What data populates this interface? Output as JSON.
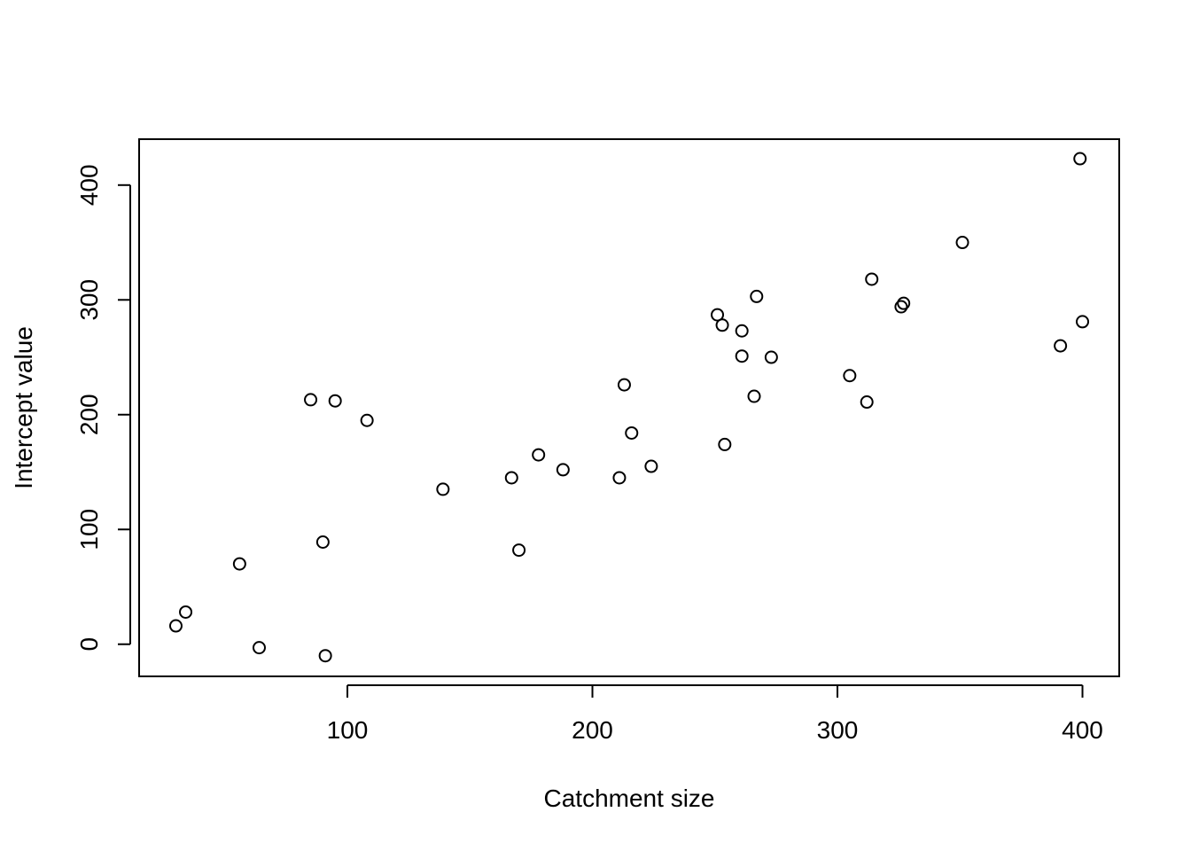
{
  "chart_data": {
    "type": "scatter",
    "title": "",
    "xlabel": "Catchment size",
    "ylabel": "Intercept value",
    "xlim": [
      15,
      415
    ],
    "ylim": [
      -28,
      440
    ],
    "xticks": [
      100,
      200,
      300,
      400
    ],
    "yticks": [
      0,
      100,
      200,
      300,
      400
    ],
    "grid": false,
    "marker": "open-circle",
    "colors": {
      "marker": "#000000",
      "axis": "#000000",
      "background": "#ffffff"
    },
    "points": [
      {
        "x": 30,
        "y": 16
      },
      {
        "x": 34,
        "y": 28
      },
      {
        "x": 56,
        "y": 70
      },
      {
        "x": 64,
        "y": -3
      },
      {
        "x": 85,
        "y": 213
      },
      {
        "x": 90,
        "y": 89
      },
      {
        "x": 91,
        "y": -10
      },
      {
        "x": 95,
        "y": 212
      },
      {
        "x": 108,
        "y": 195
      },
      {
        "x": 139,
        "y": 135
      },
      {
        "x": 167,
        "y": 145
      },
      {
        "x": 170,
        "y": 82
      },
      {
        "x": 178,
        "y": 165
      },
      {
        "x": 188,
        "y": 152
      },
      {
        "x": 211,
        "y": 145
      },
      {
        "x": 213,
        "y": 226
      },
      {
        "x": 216,
        "y": 184
      },
      {
        "x": 224,
        "y": 155
      },
      {
        "x": 251,
        "y": 287
      },
      {
        "x": 253,
        "y": 278
      },
      {
        "x": 254,
        "y": 174
      },
      {
        "x": 261,
        "y": 273
      },
      {
        "x": 261,
        "y": 251
      },
      {
        "x": 266,
        "y": 216
      },
      {
        "x": 267,
        "y": 303
      },
      {
        "x": 273,
        "y": 250
      },
      {
        "x": 305,
        "y": 234
      },
      {
        "x": 312,
        "y": 211
      },
      {
        "x": 314,
        "y": 318
      },
      {
        "x": 326,
        "y": 294
      },
      {
        "x": 327,
        "y": 297
      },
      {
        "x": 351,
        "y": 350
      },
      {
        "x": 391,
        "y": 260
      },
      {
        "x": 399,
        "y": 423
      },
      {
        "x": 400,
        "y": 281
      }
    ]
  }
}
